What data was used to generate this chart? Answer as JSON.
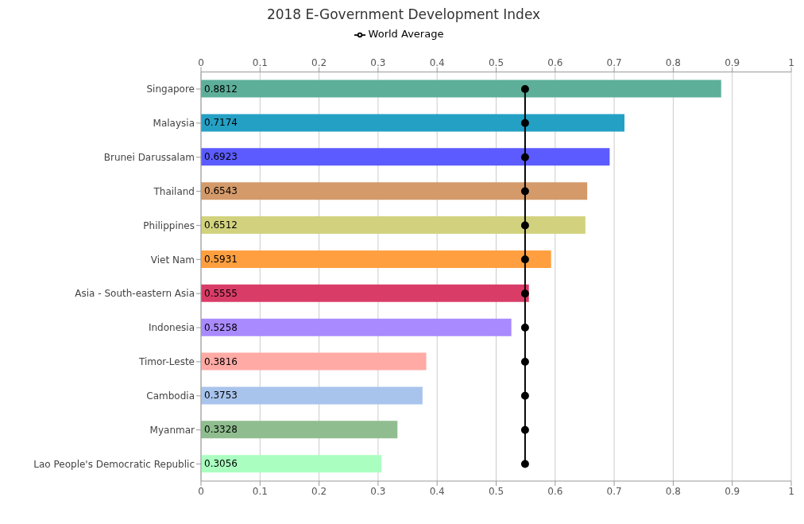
{
  "chart_data": {
    "type": "bar",
    "title": "2018 E-Government Development Index",
    "orientation": "horizontal",
    "categories": [
      "Singapore",
      "Malaysia",
      "Brunei Darussalam",
      "Thailand",
      "Philippines",
      "Viet Nam",
      "Asia - South-eastern Asia",
      "Indonesia",
      "Timor-Leste",
      "Cambodia",
      "Myanmar",
      "Lao People's Democratic Republic"
    ],
    "series": [
      {
        "values": [
          0.8812,
          0.7174,
          0.6923,
          0.6543,
          0.6512,
          0.5931,
          0.5555,
          0.5258,
          0.3816,
          0.3753,
          0.3328,
          0.3056
        ],
        "colors": [
          "#5daf9a",
          "#25a0c5",
          "#5b5bff",
          "#d49a6a",
          "#d2d27e",
          "#ff9f40",
          "#d93d67",
          "#a98aff",
          "#ffaaa5",
          "#a8c4ec",
          "#8fbd8f",
          "#aaffc0"
        ],
        "value_labels": [
          "0.8812",
          "0.7174",
          "0.6923",
          "0.6543",
          "0.6512",
          "0.5931",
          "0.5555",
          "0.5258",
          "0.3816",
          "0.3753",
          "0.3328",
          "0.3056"
        ]
      },
      {
        "type": "line",
        "name": "World Average",
        "color": "#000000",
        "marker": "circle",
        "values": [
          0.549,
          0.549,
          0.549,
          0.549,
          0.549,
          0.549,
          0.549,
          0.549,
          0.549,
          0.549,
          0.549,
          0.549
        ]
      }
    ],
    "xlim": [
      0,
      1
    ],
    "xticks": [
      0,
      0.1,
      0.2,
      0.3,
      0.4,
      0.5,
      0.6,
      0.7,
      0.8,
      0.9,
      1
    ],
    "x2lim": [
      0,
      1
    ],
    "x2ticks": [
      0,
      0.1,
      0.2,
      0.3,
      0.4,
      0.5,
      0.6,
      0.7,
      0.8,
      0.9,
      1
    ],
    "grid": "x",
    "legend": "top"
  }
}
